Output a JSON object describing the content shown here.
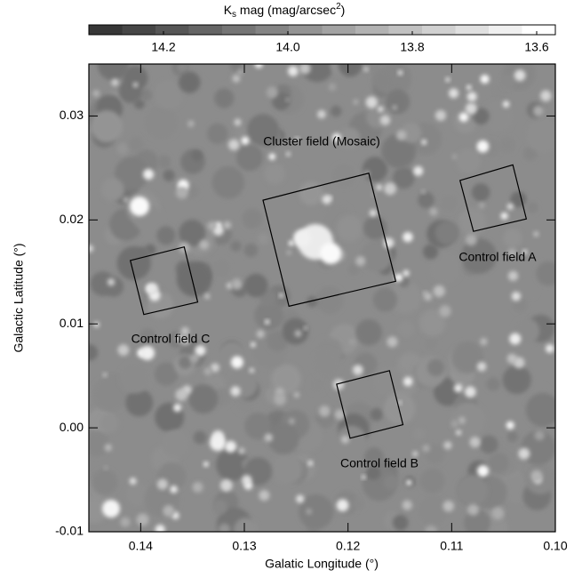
{
  "chart_data": {
    "type": "map",
    "xlabel": "Galatic Longitude (°)",
    "ylabel": "Galactic Latitude (°)",
    "xlim": [
      0.145,
      0.1
    ],
    "ylim": [
      -0.01,
      0.035
    ],
    "xticks": [
      0.14,
      0.13,
      0.12,
      0.11,
      {
        "value": 0.1,
        "label": "0.10"
      }
    ],
    "yticks": [
      -0.01,
      {
        "value": 0,
        "label": "0.00"
      },
      0.01,
      0.02,
      0.03
    ],
    "colorbar": {
      "label": {
        "main": "K",
        "sub": "s",
        "rest": " mag (mag/arcsec",
        "sup": "2",
        "end": ")"
      },
      "clim": [
        14.32,
        13.57
      ],
      "ticks": [
        14.2,
        {
          "value": 14,
          "label": "14.0"
        },
        13.8,
        13.6
      ]
    },
    "regions": [
      {
        "label": "Cluster field (Mosaic)",
        "corners": [
          [
            0.1282,
            0.0219
          ],
          [
            0.118,
            0.0245
          ],
          [
            0.1154,
            0.0141
          ],
          [
            0.1257,
            0.0117
          ]
        ]
      },
      {
        "label": "Control field A",
        "corners": [
          [
            0.1092,
            0.0238
          ],
          [
            0.1041,
            0.0253
          ],
          [
            0.1028,
            0.0201
          ],
          [
            0.1079,
            0.0189
          ]
        ]
      },
      {
        "label": "Control field C",
        "corners": [
          [
            0.141,
            0.0161
          ],
          [
            0.1358,
            0.0174
          ],
          [
            0.1345,
            0.0121
          ],
          [
            0.1397,
            0.0109
          ]
        ]
      },
      {
        "label": "Control field B",
        "corners": [
          [
            0.1211,
            0.0042
          ],
          [
            0.116,
            0.0055
          ],
          [
            0.1147,
            0.0003
          ],
          [
            0.1198,
            -0.001
          ]
        ]
      }
    ]
  }
}
